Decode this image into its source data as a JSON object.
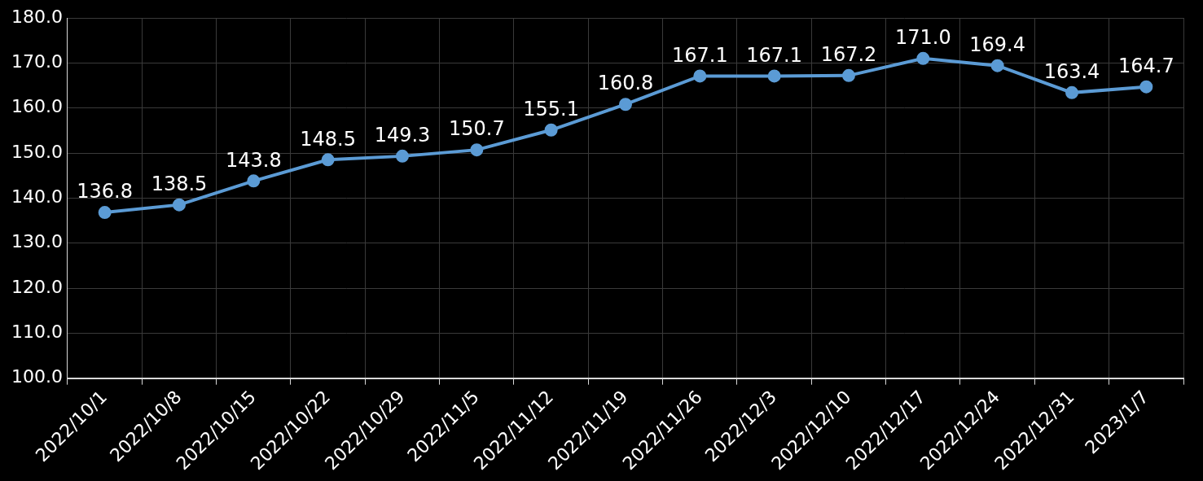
{
  "chart_data": {
    "type": "line",
    "categories": [
      "2022/10/1",
      "2022/10/8",
      "2022/10/15",
      "2022/10/22",
      "2022/10/29",
      "2022/11/5",
      "2022/11/12",
      "2022/11/19",
      "2022/11/26",
      "2022/12/3",
      "2022/12/10",
      "2022/12/17",
      "2022/12/24",
      "2022/12/31",
      "2023/1/7"
    ],
    "values": [
      136.8,
      138.5,
      143.8,
      148.5,
      149.3,
      150.7,
      155.1,
      160.8,
      167.1,
      167.1,
      167.2,
      171.0,
      169.4,
      163.4,
      164.7
    ],
    "value_labels": [
      "136.8",
      "138.5",
      "143.8",
      "148.5",
      "149.3",
      "150.7",
      "155.1",
      "160.8",
      "167.1",
      "167.1",
      "167.2",
      "171.0",
      "169.4",
      "163.4",
      "164.7"
    ],
    "color": "#5b9bd5",
    "marker": "circle",
    "ylim": [
      100,
      180
    ],
    "yticks": [
      {
        "value": 100,
        "label": "100.0"
      },
      {
        "value": 110,
        "label": "110.0"
      },
      {
        "value": 120,
        "label": "120.0"
      },
      {
        "value": 130,
        "label": "130.0"
      },
      {
        "value": 140,
        "label": "140.0"
      },
      {
        "value": 150,
        "label": "150.0"
      },
      {
        "value": 160,
        "label": "160.0"
      },
      {
        "value": 170,
        "label": "170.0"
      },
      {
        "value": 180,
        "label": "180.0"
      }
    ],
    "grid": true,
    "data_labels": true
  }
}
